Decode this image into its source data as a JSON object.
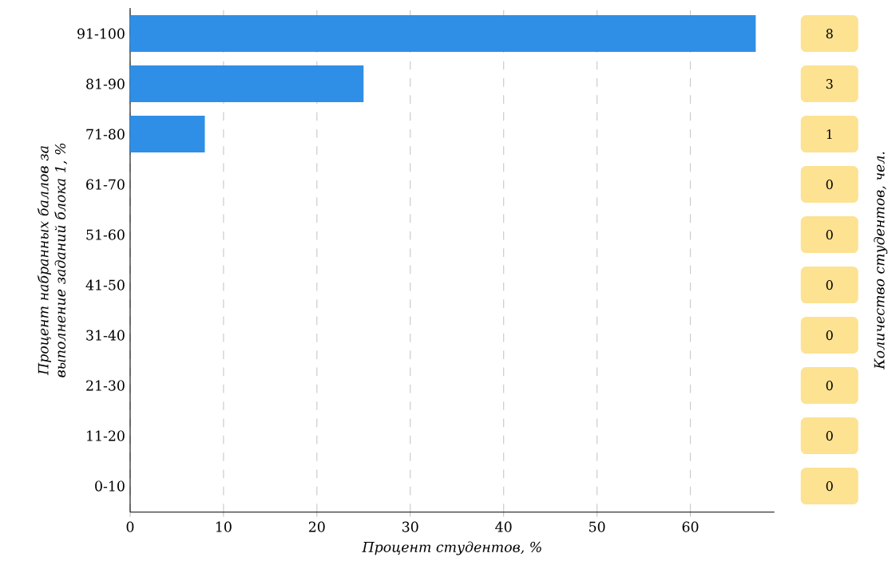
{
  "chart_data": {
    "type": "bar",
    "orientation": "horizontal",
    "xlabel": "Процент студентов, %",
    "ylabel": "Процент набранных баллов за выполнение заданий блока 1, %",
    "categories": [
      "91-100",
      "81-90",
      "71-80",
      "61-70",
      "51-60",
      "41-50",
      "31-40",
      "21-30",
      "11-20",
      "0-10"
    ],
    "values": [
      67,
      25,
      8,
      0,
      0,
      0,
      0,
      0,
      0,
      0
    ],
    "annotations": [
      "8",
      "3",
      "1",
      "0",
      "0",
      "0",
      "0",
      "0",
      "0",
      "0",
      "Количество студентов, чел."
    ],
    "color": "#2f8fe6",
    "xlim": [
      0,
      69
    ],
    "xticks": [
      0,
      10,
      20,
      30,
      40,
      50,
      60
    ],
    "grid": "x"
  }
}
